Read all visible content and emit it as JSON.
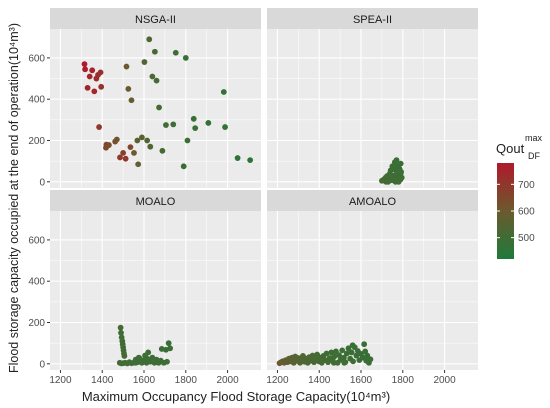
{
  "chart_data": {
    "type": "scatter",
    "xlabel": "Maximum Occupancy Flood Storage Capacity(10⁴m³)",
    "ylabel": "Flood storage capacity occupied at the end of operation(10⁴m³)",
    "x_ticks": [
      "1200",
      "1400",
      "1600",
      "1800",
      "2000"
    ],
    "y_ticks": [
      "0",
      "200",
      "400",
      "600"
    ],
    "xlim": [
      1150,
      2160
    ],
    "ylim": [
      -30,
      740
    ],
    "grid": true,
    "colors": {
      "low": "#1e7a3a",
      "mid": "#6b5a2e",
      "high": "#b0192b",
      "panel": "#ebebeb",
      "strip": "#d9d9d9",
      "grid": "#ffffff"
    },
    "legend": {
      "title": "Qout",
      "title_sup": "max",
      "title_sub": "DF",
      "ticks": [
        "500",
        "600",
        "700"
      ],
      "tick_values": [
        500,
        600,
        700
      ],
      "range": [
        420,
        780
      ],
      "placement": "right"
    },
    "panels": [
      {
        "name": "NSGA-II",
        "points": [
          [
            1315,
            570,
            780
          ],
          [
            1318,
            545,
            770
          ],
          [
            1330,
            455,
            750
          ],
          [
            1340,
            510,
            740
          ],
          [
            1352,
            540,
            760
          ],
          [
            1362,
            438,
            745
          ],
          [
            1372,
            500,
            735
          ],
          [
            1380,
            518,
            720
          ],
          [
            1392,
            530,
            725
          ],
          [
            1395,
            460,
            710
          ],
          [
            1385,
            265,
            700
          ],
          [
            1420,
            180,
            660
          ],
          [
            1418,
            165,
            650
          ],
          [
            1432,
            178,
            640
          ],
          [
            1462,
            195,
            630
          ],
          [
            1470,
            205,
            620
          ],
          [
            1485,
            118,
            690
          ],
          [
            1500,
            140,
            680
          ],
          [
            1512,
            112,
            700
          ],
          [
            1516,
            558,
            600
          ],
          [
            1535,
            168,
            650
          ],
          [
            1525,
            450,
            590
          ],
          [
            1540,
            395,
            580
          ],
          [
            1552,
            140,
            600
          ],
          [
            1572,
            85,
            580
          ],
          [
            1568,
            200,
            560
          ],
          [
            1590,
            215,
            550
          ],
          [
            1602,
            580,
            540
          ],
          [
            1615,
            200,
            545
          ],
          [
            1625,
            690,
            530
          ],
          [
            1630,
            170,
            540
          ],
          [
            1640,
            510,
            520
          ],
          [
            1652,
            630,
            520
          ],
          [
            1660,
            490,
            510
          ],
          [
            1672,
            360,
            505
          ],
          [
            1688,
            150,
            510
          ],
          [
            1705,
            275,
            500
          ],
          [
            1740,
            278,
            490
          ],
          [
            1752,
            625,
            490
          ],
          [
            1790,
            75,
            480
          ],
          [
            1800,
            600,
            480
          ],
          [
            1808,
            200,
            485
          ],
          [
            1838,
            305,
            480
          ],
          [
            1845,
            260,
            475
          ],
          [
            1908,
            285,
            470
          ],
          [
            1982,
            435,
            470
          ],
          [
            1988,
            265,
            465
          ],
          [
            2048,
            115,
            470
          ],
          [
            2108,
            105,
            460
          ]
        ]
      },
      {
        "name": "SPEA-II",
        "points": [
          [
            1700,
            5,
            510
          ],
          [
            1710,
            12,
            500
          ],
          [
            1718,
            20,
            505
          ],
          [
            1725,
            28,
            495
          ],
          [
            1732,
            10,
            505
          ],
          [
            1738,
            40,
            500
          ],
          [
            1742,
            55,
            495
          ],
          [
            1748,
            8,
            490
          ],
          [
            1750,
            75,
            490
          ],
          [
            1755,
            30,
            495
          ],
          [
            1760,
            60,
            485
          ],
          [
            1762,
            95,
            490
          ],
          [
            1766,
            15,
            500
          ],
          [
            1770,
            105,
            485
          ],
          [
            1772,
            45,
            490
          ],
          [
            1778,
            78,
            485
          ],
          [
            1782,
            30,
            495
          ],
          [
            1785,
            62,
            485
          ],
          [
            1788,
            10,
            500
          ],
          [
            1790,
            88,
            480
          ],
          [
            1792,
            48,
            490
          ],
          [
            1795,
            20,
            500
          ],
          [
            1765,
            0,
            505
          ],
          [
            1780,
            0,
            495
          ],
          [
            1730,
            0,
            510
          ],
          [
            1745,
            25,
            500
          ],
          [
            1775,
            35,
            495
          ],
          [
            1790,
            40,
            485
          ],
          [
            1720,
            0,
            505
          ],
          [
            1758,
            12,
            495
          ],
          [
            1768,
            70,
            485
          ],
          [
            1783,
            50,
            490
          ]
        ]
      },
      {
        "name": "MOALO",
        "points": [
          [
            1488,
            175,
            510
          ],
          [
            1490,
            150,
            505
          ],
          [
            1493,
            128,
            500
          ],
          [
            1496,
            110,
            500
          ],
          [
            1498,
            95,
            505
          ],
          [
            1500,
            80,
            500
          ],
          [
            1502,
            65,
            505
          ],
          [
            1504,
            50,
            500
          ],
          [
            1506,
            38,
            505
          ],
          [
            1484,
            5,
            510
          ],
          [
            1492,
            2,
            505
          ],
          [
            1500,
            3,
            500
          ],
          [
            1510,
            5,
            505
          ],
          [
            1520,
            2,
            500
          ],
          [
            1530,
            8,
            505
          ],
          [
            1540,
            3,
            500
          ],
          [
            1550,
            5,
            500
          ],
          [
            1560,
            20,
            495
          ],
          [
            1570,
            8,
            500
          ],
          [
            1580,
            25,
            495
          ],
          [
            1590,
            5,
            500
          ],
          [
            1598,
            15,
            495
          ],
          [
            1605,
            40,
            490
          ],
          [
            1612,
            5,
            495
          ],
          [
            1620,
            55,
            490
          ],
          [
            1630,
            10,
            495
          ],
          [
            1640,
            30,
            490
          ],
          [
            1650,
            5,
            495
          ],
          [
            1660,
            20,
            490
          ],
          [
            1670,
            5,
            495
          ],
          [
            1680,
            15,
            490
          ],
          [
            1685,
            72,
            485
          ],
          [
            1695,
            5,
            490
          ],
          [
            1705,
            68,
            485
          ],
          [
            1710,
            10,
            490
          ],
          [
            1718,
            100,
            480
          ],
          [
            1725,
            75,
            485
          ],
          [
            1560,
            5,
            500
          ],
          [
            1575,
            30,
            495
          ],
          [
            1615,
            25,
            490
          ]
        ]
      },
      {
        "name": "AMOALO",
        "points": [
          [
            1210,
            3,
            600
          ],
          [
            1218,
            8,
            590
          ],
          [
            1225,
            12,
            580
          ],
          [
            1232,
            5,
            585
          ],
          [
            1240,
            18,
            570
          ],
          [
            1248,
            8,
            575
          ],
          [
            1255,
            25,
            560
          ],
          [
            1262,
            12,
            565
          ],
          [
            1270,
            30,
            555
          ],
          [
            1278,
            5,
            560
          ],
          [
            1285,
            35,
            545
          ],
          [
            1292,
            15,
            550
          ],
          [
            1300,
            28,
            540
          ],
          [
            1308,
            5,
            545
          ],
          [
            1315,
            20,
            535
          ],
          [
            1322,
            38,
            530
          ],
          [
            1330,
            10,
            535
          ],
          [
            1338,
            25,
            525
          ],
          [
            1345,
            5,
            530
          ],
          [
            1352,
            32,
            520
          ],
          [
            1360,
            15,
            520
          ],
          [
            1368,
            40,
            515
          ],
          [
            1375,
            8,
            520
          ],
          [
            1382,
            22,
            515
          ],
          [
            1390,
            45,
            510
          ],
          [
            1398,
            12,
            515
          ],
          [
            1405,
            30,
            510
          ],
          [
            1412,
            5,
            512
          ],
          [
            1420,
            38,
            505
          ],
          [
            1428,
            18,
            508
          ],
          [
            1435,
            50,
            500
          ],
          [
            1442,
            8,
            505
          ],
          [
            1450,
            28,
            500
          ],
          [
            1458,
            55,
            495
          ],
          [
            1465,
            15,
            500
          ],
          [
            1472,
            35,
            495
          ],
          [
            1480,
            60,
            490
          ],
          [
            1488,
            5,
            500
          ],
          [
            1495,
            42,
            492
          ],
          [
            1502,
            20,
            495
          ],
          [
            1510,
            65,
            490
          ],
          [
            1518,
            30,
            492
          ],
          [
            1525,
            8,
            495
          ],
          [
            1532,
            50,
            488
          ],
          [
            1540,
            75,
            485
          ],
          [
            1548,
            25,
            490
          ],
          [
            1555,
            55,
            485
          ],
          [
            1562,
            12,
            490
          ],
          [
            1570,
            80,
            482
          ],
          [
            1578,
            40,
            486
          ],
          [
            1585,
            62,
            484
          ],
          [
            1592,
            18,
            488
          ],
          [
            1600,
            48,
            484
          ],
          [
            1608,
            30,
            486
          ],
          [
            1615,
            95,
            480
          ],
          [
            1620,
            60,
            482
          ],
          [
            1625,
            15,
            485
          ],
          [
            1630,
            40,
            482
          ],
          [
            1638,
            5,
            485
          ],
          [
            1645,
            22,
            482
          ],
          [
            1560,
            90,
            482
          ],
          [
            1520,
            5,
            495
          ],
          [
            1470,
            5,
            500
          ],
          [
            1400,
            30,
            512
          ]
        ]
      }
    ]
  }
}
